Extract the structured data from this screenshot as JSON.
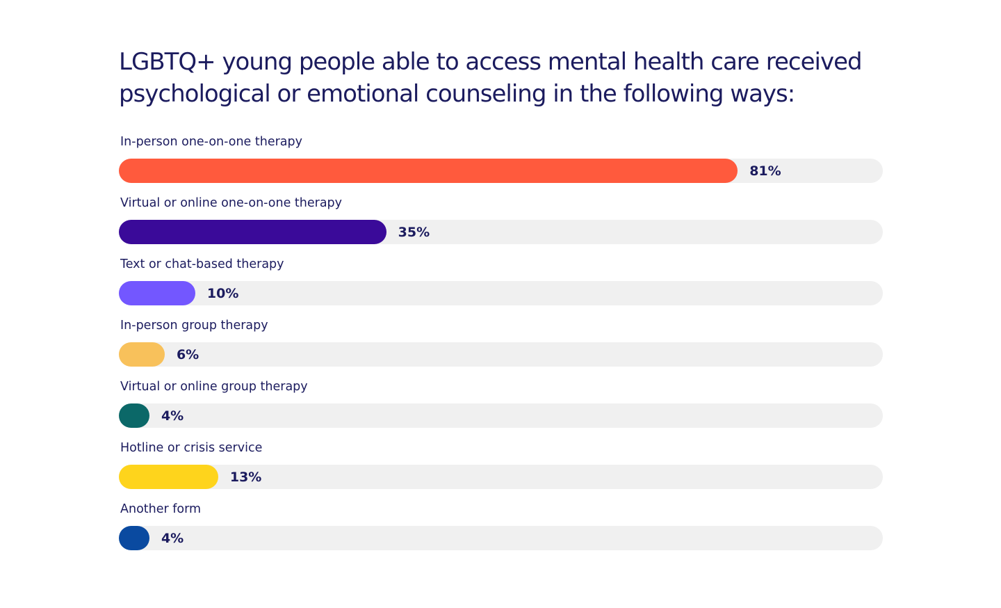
{
  "chart_data": {
    "type": "bar",
    "orientation": "horizontal",
    "title": "LGBTQ+ young people able to access mental health care received psychological or emotional counseling in the following ways:",
    "xlim": [
      0,
      100
    ],
    "unit": "%",
    "grid": false,
    "legend": "none",
    "categories": [
      "In-person one-on-one therapy",
      "Virtual or online one-on-one therapy",
      "Text or chat-based therapy",
      "In-person group therapy",
      "Virtual or online group therapy",
      "Hotline or crisis service",
      "Another form"
    ],
    "values": [
      81,
      35,
      10,
      6,
      4,
      13,
      4
    ],
    "value_labels": [
      "81%",
      "35%",
      "10%",
      "6%",
      "4%",
      "13%",
      "4%"
    ],
    "colors": [
      "#ff5a3d",
      "#3a0a99",
      "#7357ff",
      "#f8c15b",
      "#0b6868",
      "#fed41c",
      "#0a4aa0"
    ],
    "track_color": "#f0f0f0",
    "text_color": "#1b1b5e"
  }
}
